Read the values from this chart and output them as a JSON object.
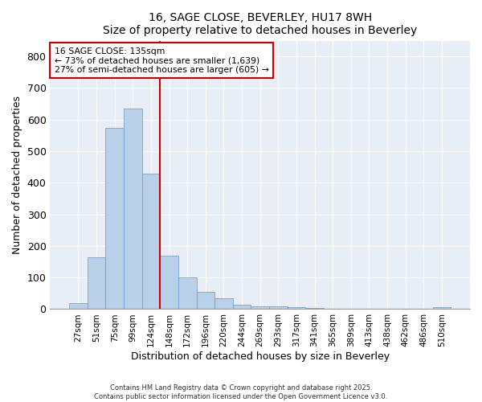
{
  "title": "16, SAGE CLOSE, BEVERLEY, HU17 8WH",
  "subtitle": "Size of property relative to detached houses in Beverley",
  "xlabel": "Distribution of detached houses by size in Beverley",
  "ylabel": "Number of detached properties",
  "footer_line1": "Contains HM Land Registry data © Crown copyright and database right 2025.",
  "footer_line2": "Contains public sector information licensed under the Open Government Licence v3.0.",
  "categories": [
    "27sqm",
    "51sqm",
    "75sqm",
    "99sqm",
    "124sqm",
    "148sqm",
    "172sqm",
    "196sqm",
    "220sqm",
    "244sqm",
    "269sqm",
    "293sqm",
    "317sqm",
    "341sqm",
    "365sqm",
    "389sqm",
    "413sqm",
    "438sqm",
    "462sqm",
    "486sqm",
    "510sqm"
  ],
  "values": [
    20,
    165,
    575,
    635,
    430,
    170,
    100,
    55,
    35,
    15,
    10,
    8,
    5,
    3,
    2,
    1,
    0,
    0,
    0,
    0,
    5
  ],
  "bar_color": "#b8d0e8",
  "bar_edge_color": "#6699cc",
  "annotation_box_text": "16 SAGE CLOSE: 135sqm\n← 73% of detached houses are smaller (1,639)\n27% of semi-detached houses are larger (605) →",
  "vline_color": "#cc0000",
  "vline_x": 4.5,
  "annotation_box_color": "#ffffff",
  "annotation_box_edge_color": "#cc0000",
  "background_color": "#ffffff",
  "plot_background_color": "#e8eef5",
  "grid_color": "#ffffff",
  "ylim": [
    0,
    850
  ],
  "yticks": [
    0,
    100,
    200,
    300,
    400,
    500,
    600,
    700,
    800
  ],
  "figwidth": 6.0,
  "figheight": 5.0,
  "dpi": 100
}
